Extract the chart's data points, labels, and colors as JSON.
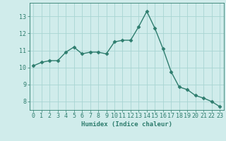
{
  "x": [
    0,
    1,
    2,
    3,
    4,
    5,
    6,
    7,
    8,
    9,
    10,
    11,
    12,
    13,
    14,
    15,
    16,
    17,
    18,
    19,
    20,
    21,
    22,
    23
  ],
  "y": [
    10.1,
    10.3,
    10.4,
    10.4,
    10.9,
    11.2,
    10.8,
    10.9,
    10.9,
    10.8,
    11.5,
    11.6,
    11.6,
    12.4,
    13.3,
    12.3,
    11.1,
    9.75,
    8.85,
    8.7,
    8.35,
    8.2,
    8.0,
    7.7
  ],
  "line_color": "#2e7d6e",
  "marker": "D",
  "marker_size": 2.5,
  "bg_color": "#d0eceb",
  "grid_color": "#a8d5d2",
  "xlabel": "Humidex (Indice chaleur)",
  "xlim": [
    -0.5,
    23.5
  ],
  "ylim": [
    7.5,
    13.8
  ],
  "yticks": [
    8,
    9,
    10,
    11,
    12,
    13
  ],
  "xticks": [
    0,
    1,
    2,
    3,
    4,
    5,
    6,
    7,
    8,
    9,
    10,
    11,
    12,
    13,
    14,
    15,
    16,
    17,
    18,
    19,
    20,
    21,
    22,
    23
  ],
  "xlabel_fontsize": 6.5,
  "tick_fontsize": 6.0,
  "line_width": 1.0
}
